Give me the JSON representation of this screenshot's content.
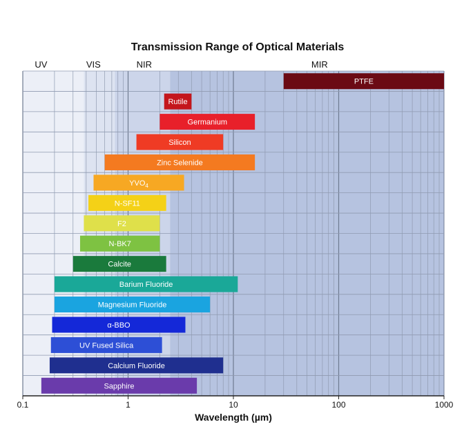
{
  "chart_data": {
    "type": "bar",
    "orientation": "horizontal",
    "title": "Transmission Range of Optical Materials",
    "xlabel": "Wavelength (µm)",
    "ylabel": "",
    "xscale": "log",
    "xlim": [
      0.1,
      1000
    ],
    "x_ticks": [
      {
        "value": 0.1,
        "label": "0.1"
      },
      {
        "value": 1,
        "label": "1"
      },
      {
        "value": 10,
        "label": "10"
      },
      {
        "value": 100,
        "label": "100"
      },
      {
        "value": 1000,
        "label": "1000"
      }
    ],
    "regions": [
      {
        "name": "UV",
        "start": 0.1,
        "end": 0.38,
        "label_at": 0.13
      },
      {
        "name": "VIS",
        "start": 0.38,
        "end": 0.75,
        "label_at": 0.4
      },
      {
        "name": "NIR",
        "start": 0.75,
        "end": 2.5,
        "label_at": 1.2
      },
      {
        "name": "MIR",
        "start": 2.5,
        "end": 1000,
        "label_at": 55
      }
    ],
    "materials": [
      {
        "name": "PTFE",
        "min": 30,
        "max": 1000,
        "color": "#6b0a14"
      },
      {
        "name": "Rutile",
        "min": 2.2,
        "max": 4.0,
        "color": "#c4161c"
      },
      {
        "name": "Germanium",
        "min": 2.0,
        "max": 16,
        "color": "#e8202a"
      },
      {
        "name": "Silicon",
        "min": 1.2,
        "max": 8.0,
        "color": "#ef3b24"
      },
      {
        "name": "Zinc Selenide",
        "min": 0.6,
        "max": 16,
        "color": "#f47a20"
      },
      {
        "name": "YVO",
        "subscript": "4",
        "min": 0.47,
        "max": 3.4,
        "color": "#f7a823"
      },
      {
        "name": "N-SF11",
        "min": 0.42,
        "max": 2.3,
        "color": "#f4d117"
      },
      {
        "name": "F2",
        "min": 0.38,
        "max": 2.0,
        "color": "#dfe04a"
      },
      {
        "name": "N-BK7",
        "min": 0.35,
        "max": 2.0,
        "color": "#7ec242"
      },
      {
        "name": "Calcite",
        "min": 0.3,
        "max": 2.3,
        "color": "#1a7a3c"
      },
      {
        "name": "Barium Fluoride",
        "min": 0.2,
        "max": 11,
        "color": "#1aa898"
      },
      {
        "name": "Magnesium Fluoride",
        "min": 0.2,
        "max": 6.0,
        "color": "#1aa4e0"
      },
      {
        "name": "α-BBO",
        "min": 0.19,
        "max": 3.5,
        "color": "#1428d8"
      },
      {
        "name": "UV Fused Silica",
        "min": 0.185,
        "max": 2.1,
        "color": "#2d4fd6"
      },
      {
        "name": "Calcium Fluoride",
        "min": 0.18,
        "max": 8.0,
        "color": "#1f2f8f"
      },
      {
        "name": "Sapphire",
        "min": 0.15,
        "max": 4.5,
        "color": "#6a3bab"
      }
    ]
  }
}
